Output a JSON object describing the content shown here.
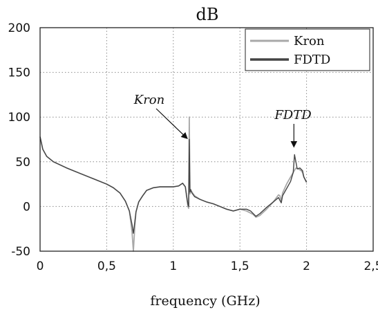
{
  "chart_data": {
    "type": "line",
    "title": "dB",
    "xlabel": "frequency (GHz)",
    "ylabel": "",
    "xlim": [
      0,
      2.5
    ],
    "ylim": [
      -50,
      200
    ],
    "x_ticks": [
      0,
      0.5,
      1,
      1.5,
      2,
      2.5
    ],
    "x_tick_labels": [
      "0",
      "0,5",
      "1",
      "1,5",
      "2",
      "2,5"
    ],
    "y_ticks": [
      -50,
      0,
      50,
      100,
      150,
      200
    ],
    "y_tick_labels": [
      "-50",
      "0",
      "50",
      "100",
      "150",
      "200"
    ],
    "grid": true,
    "legend_position": "top-right",
    "series": [
      {
        "name": "Kron",
        "color": "#a8a8a8",
        "x": [
          0,
          0.02,
          0.05,
          0.1,
          0.2,
          0.3,
          0.4,
          0.5,
          0.55,
          0.6,
          0.64,
          0.67,
          0.69,
          0.7,
          0.71,
          0.72,
          0.74,
          0.77,
          0.8,
          0.85,
          0.9,
          0.95,
          1.0,
          1.04,
          1.07,
          1.09,
          1.1,
          1.11,
          1.115,
          1.12,
          1.125,
          1.13,
          1.14,
          1.16,
          1.2,
          1.25,
          1.3,
          1.35,
          1.4,
          1.45,
          1.5,
          1.55,
          1.6,
          1.62,
          1.65,
          1.7,
          1.75,
          1.79,
          1.8,
          1.81,
          1.82,
          1.85,
          1.88,
          1.9,
          1.92,
          1.94,
          1.96,
          1.97,
          1.98,
          2.0
        ],
        "y": [
          78,
          64,
          56,
          50,
          43,
          37,
          31,
          25,
          21,
          15,
          6,
          -5,
          -28,
          -50,
          -25,
          -6,
          5,
          12,
          18,
          21,
          22,
          22,
          22,
          23,
          26,
          22,
          10,
          0,
          -2,
          100,
          14,
          18,
          16,
          12,
          8,
          5,
          3,
          0,
          -3,
          -5,
          -3,
          -5,
          -9,
          -12,
          -10,
          -3,
          5,
          13,
          12,
          6,
          15,
          25,
          33,
          38,
          43,
          42,
          40,
          38,
          33,
          27
        ]
      },
      {
        "name": "FDTD",
        "color": "#444444",
        "x": [
          0,
          0.02,
          0.05,
          0.1,
          0.2,
          0.3,
          0.4,
          0.5,
          0.55,
          0.6,
          0.64,
          0.67,
          0.69,
          0.7,
          0.71,
          0.72,
          0.74,
          0.77,
          0.8,
          0.85,
          0.9,
          0.95,
          1.0,
          1.04,
          1.07,
          1.09,
          1.1,
          1.11,
          1.115,
          1.12,
          1.125,
          1.13,
          1.14,
          1.16,
          1.2,
          1.25,
          1.3,
          1.35,
          1.4,
          1.45,
          1.5,
          1.55,
          1.58,
          1.6,
          1.62,
          1.65,
          1.7,
          1.75,
          1.79,
          1.8,
          1.81,
          1.82,
          1.85,
          1.88,
          1.9,
          1.91,
          1.93,
          1.95,
          1.97,
          1.98,
          2.0
        ],
        "y": [
          78,
          64,
          56,
          50,
          43,
          37,
          31,
          25,
          21,
          15,
          6,
          -5,
          -20,
          -30,
          -18,
          -6,
          5,
          12,
          18,
          21,
          22,
          22,
          22,
          23,
          26,
          22,
          12,
          2,
          0,
          75,
          16,
          19,
          15,
          11,
          8,
          5,
          3,
          0,
          -3,
          -5,
          -3,
          -3,
          -5,
          -8,
          -11,
          -8,
          -1,
          5,
          10,
          7,
          4,
          12,
          20,
          28,
          38,
          58,
          42,
          43,
          40,
          33,
          27
        ]
      }
    ],
    "annotations": [
      {
        "text": "Kron",
        "x": 1.115,
        "y": 76
      },
      {
        "text": "FDTD",
        "x": 1.905,
        "y": 62
      }
    ]
  }
}
